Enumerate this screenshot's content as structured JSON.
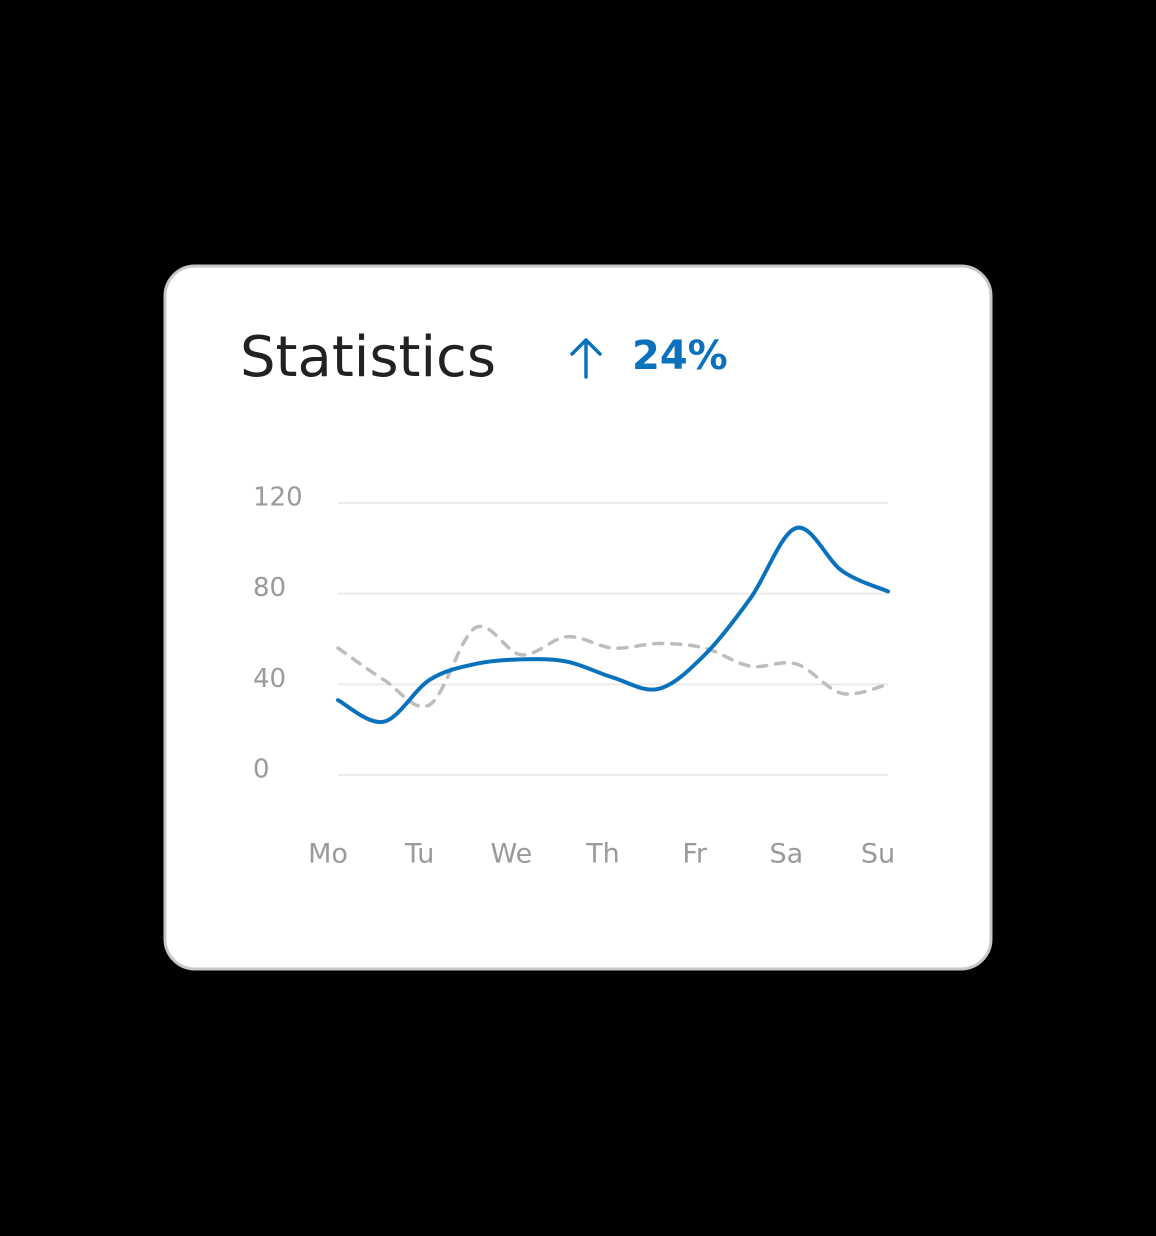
{
  "chart_data": {
    "type": "line",
    "title": "Statistics",
    "annotation": "24%",
    "annotation_color": "#0a72bd",
    "categories": [
      "Mo",
      null,
      "Tu",
      null,
      "We",
      null,
      "Th",
      null,
      "Fr",
      null,
      "Sa",
      null,
      "Su"
    ],
    "series": [
      {
        "color": "#0a72bd",
        "dashed": false,
        "values": [
          33,
          23.5,
          42,
          49,
          51,
          50,
          43,
          38,
          53,
          78,
          109,
          90,
          81
        ]
      },
      {
        "color": "#bdbdbd",
        "dashed": true,
        "values": [
          56,
          42,
          31,
          65,
          53,
          61,
          56,
          58,
          56,
          48,
          49,
          36,
          40
        ]
      }
    ],
    "ylim": [
      0,
      120
    ],
    "yticks": [
      0,
      40,
      80,
      120
    ],
    "grid": true
  }
}
